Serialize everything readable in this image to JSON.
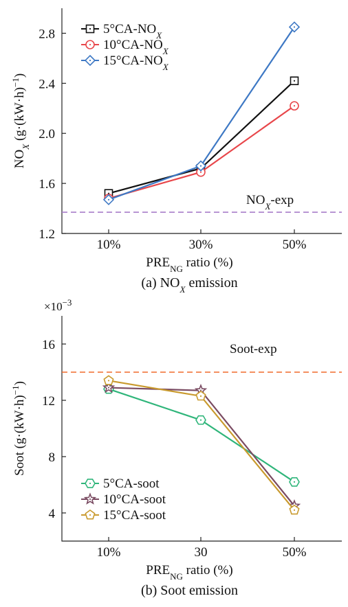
{
  "chart_data": [
    {
      "type": "line",
      "caption": "(a) NO",
      "caption_sub": "X",
      "caption_tail": " emission",
      "xlabel": "PRE",
      "xlabel_sub": "NG",
      "xlabel_tail": " ratio (%)",
      "ylabel": "NO",
      "ylabel_sub": "X",
      "ylabel_tail": "  (g·(kW·h)",
      "ylabel_sup": "−1",
      "ylabel_end": ")",
      "categories": [
        "10%",
        "30%",
        "50%"
      ],
      "ylim": [
        1.2,
        3.0
      ],
      "yticks": [
        1.2,
        1.6,
        2.0,
        2.4,
        2.8
      ],
      "ytick_labels": [
        "1.2",
        "1.6",
        "2.0",
        "2.4",
        "2.8"
      ],
      "reference": {
        "label": "NO",
        "label_sub": "X",
        "label_tail": "-exp",
        "value": 1.37,
        "color": "#a77dc9"
      },
      "legend_position": "top-left",
      "series": [
        {
          "name": "5°CA-NO",
          "name_sub": "X",
          "values": [
            1.52,
            1.72,
            2.42
          ],
          "color": "#111111",
          "marker": "square"
        },
        {
          "name": "10°CA-NO",
          "name_sub": "X",
          "values": [
            1.48,
            1.69,
            2.22
          ],
          "color": "#e8464a",
          "marker": "circle"
        },
        {
          "name": "15°CA-NO",
          "name_sub": "X",
          "values": [
            1.47,
            1.74,
            2.85
          ],
          "color": "#3d78c4",
          "marker": "diamond"
        }
      ]
    },
    {
      "type": "line",
      "caption": "(b) Soot emission",
      "xlabel": "PRE",
      "xlabel_sub": "NG",
      "xlabel_tail": " ratio (%)",
      "ylabel": "Soot (g·(kW·h)",
      "ylabel_sup": "−1",
      "ylabel_end": ")",
      "multiplier": "×10",
      "multiplier_sup": "−3",
      "categories": [
        "10%",
        "30",
        "50%"
      ],
      "ylim": [
        2,
        18
      ],
      "yticks": [
        4,
        8,
        12,
        16
      ],
      "ytick_labels": [
        "4",
        "8",
        "12",
        "16"
      ],
      "reference": {
        "label": "Soot-exp",
        "value": 14.0,
        "color": "#f06a2a"
      },
      "legend_position": "bottom-left",
      "series": [
        {
          "name": "5°CA-soot",
          "values": [
            12.8,
            10.6,
            6.2
          ],
          "color": "#2fb57a",
          "marker": "hexagon"
        },
        {
          "name": "10°CA-soot",
          "values": [
            12.9,
            12.7,
            4.5
          ],
          "color": "#7a4b62",
          "marker": "star"
        },
        {
          "name": "15°CA-soot",
          "values": [
            13.4,
            12.3,
            4.2
          ],
          "color": "#c99a2e",
          "marker": "pentagon"
        }
      ]
    }
  ]
}
